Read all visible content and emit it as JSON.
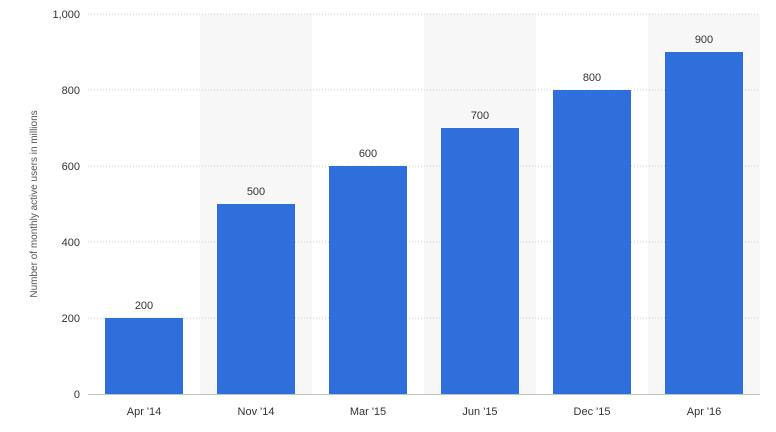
{
  "chart_data": {
    "type": "bar",
    "categories": [
      "Apr '14",
      "Nov '14",
      "Mar '15",
      "Jun '15",
      "Dec '15",
      "Apr '16"
    ],
    "values": [
      200,
      500,
      600,
      700,
      800,
      900
    ],
    "data_labels": [
      "200",
      "500",
      "600",
      "700",
      "800",
      "900"
    ],
    "title": "",
    "xlabel": "",
    "ylabel": "Number of monthly active users in millions",
    "ylim": [
      0,
      1000
    ],
    "yticks": [
      0,
      200,
      400,
      600,
      800,
      1000
    ],
    "ytick_labels": [
      "0",
      "200",
      "400",
      "600",
      "800",
      "1,000"
    ],
    "grid": true,
    "alternating_column_bands": true,
    "legend": "none",
    "colors": {
      "bar": "#2f6fdc",
      "grid": "#cccccc",
      "band": "#f7f7f7",
      "axis": "#bfbfbf"
    }
  }
}
